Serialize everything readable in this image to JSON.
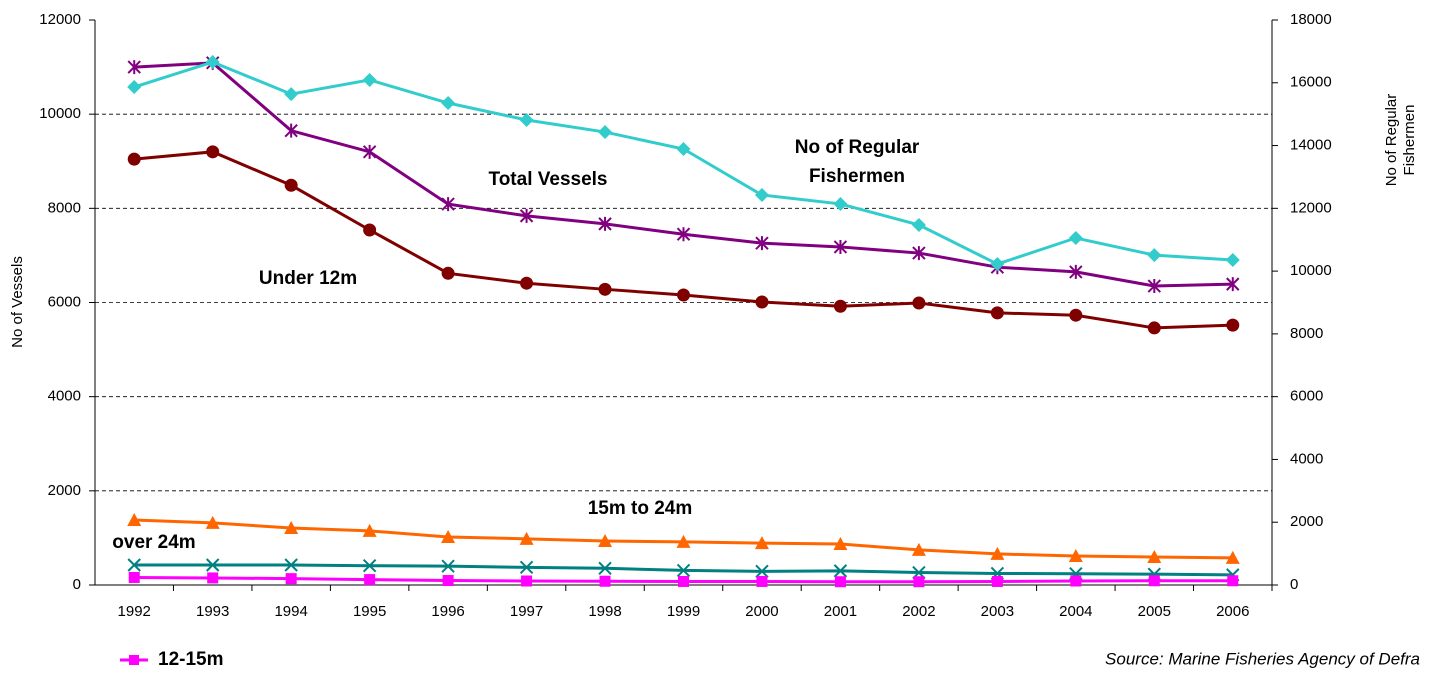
{
  "chart_data": {
    "type": "line",
    "categories": [
      "1992",
      "1993",
      "1994",
      "1995",
      "1996",
      "1997",
      "1998",
      "1999",
      "2000",
      "2001",
      "2002",
      "2003",
      "2004",
      "2005",
      "2006"
    ],
    "ylabel": "No of Vessels",
    "y2label": "No of Regular Fishermen",
    "ylim": [
      0,
      12000
    ],
    "yticks": [
      0,
      2000,
      4000,
      6000,
      8000,
      10000,
      12000
    ],
    "y2lim": [
      0,
      18000
    ],
    "y2ticks": [
      0,
      2000,
      4000,
      6000,
      8000,
      10000,
      12000,
      14000,
      16000,
      18000
    ],
    "grid": true,
    "legend": "bottom left",
    "source": "Source: Marine Fisheries Agency of Defra",
    "series": [
      {
        "name": "Total Vessels",
        "color": "#800080",
        "marker": "asterisk",
        "values": [
          11000,
          11090,
          9650,
          9200,
          8090,
          7840,
          7670,
          7450,
          7260,
          7180,
          7050,
          6750,
          6650,
          6350,
          6390
        ]
      },
      {
        "name": "Under 12m",
        "color": "#800000",
        "marker": "circle",
        "values": [
          9045,
          9200,
          8490,
          7540,
          6620,
          6410,
          6280,
          6160,
          6010,
          5920,
          5990,
          5780,
          5730,
          5460,
          5520
        ]
      },
      {
        "name": "No of Regular Fishermen",
        "color": "#33CCCC",
        "marker": "diamond",
        "axis": "y2",
        "values": [
          15865,
          16660,
          15640,
          16090,
          15355,
          14815,
          14430,
          13890,
          12425,
          12140,
          11470,
          10225,
          11055,
          10510,
          10355
        ]
      },
      {
        "name": "15m to 24m",
        "color": "#FF6600",
        "marker": "triangle",
        "values": [
          1380,
          1320,
          1210,
          1150,
          1020,
          980,
          935,
          915,
          890,
          870,
          745,
          660,
          615,
          595,
          575
        ]
      },
      {
        "name": "over 24m",
        "color": "#008080",
        "marker": "x",
        "values": [
          425,
          425,
          425,
          410,
          400,
          375,
          355,
          310,
          290,
          300,
          265,
          245,
          240,
          230,
          215
        ]
      },
      {
        "name": "12-15m",
        "color": "#FF00FF",
        "marker": "square",
        "legend": true,
        "values": [
          160,
          150,
          135,
          115,
          95,
          85,
          80,
          75,
          75,
          70,
          70,
          75,
          85,
          90,
          90
        ]
      }
    ]
  }
}
